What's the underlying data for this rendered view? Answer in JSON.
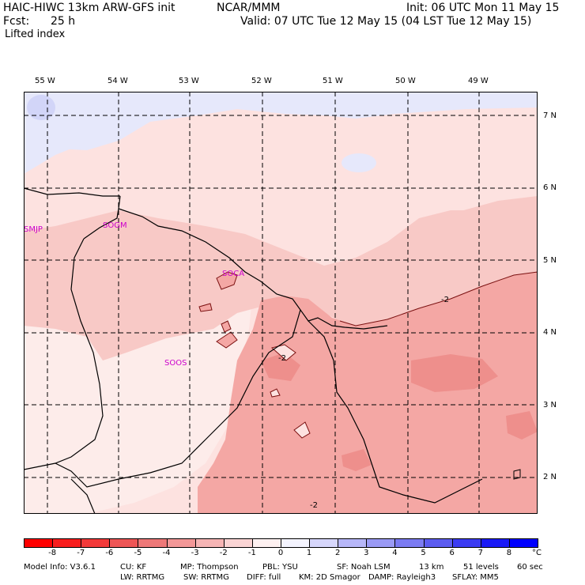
{
  "header": {
    "model_title": "HAIC-HIWC 13km ARW-GFS init",
    "org": "NCAR/MMM",
    "init": "Init: 06 UTC Mon 11 May 15",
    "fcst_label": "Fcst:",
    "fcst_value": "25 h",
    "valid": "Valid: 07 UTC Tue 12 May 15 (04 LST Tue 12 May 15)",
    "field": "Lifted index"
  },
  "map": {
    "lon_labels": [
      "55 W",
      "54 W",
      "53 W",
      "52 W",
      "51 W",
      "50 W",
      "49 W"
    ],
    "lat_labels": [
      "7 N",
      "6 N",
      "5 N",
      "4 N",
      "3 N",
      "2 N"
    ],
    "stations": [
      "SMJP",
      "SOGM",
      "SOCA",
      "SOOS"
    ],
    "contour_labels": [
      "-2",
      "-2",
      "-2"
    ],
    "colors": {
      "ocean_pale": "#fde2e0",
      "land_pale": "#fdecea",
      "band": "#f8c9c6",
      "mid": "#f4a7a4",
      "strong": "#ee8f8c",
      "blue_tint": "#e6e8fb",
      "blue_blob": "#d2d5f8",
      "station": "#cc00cc"
    }
  },
  "colorbar": {
    "labels": [
      "-8",
      "-7",
      "-6",
      "-5",
      "-4",
      "-3",
      "-2",
      "-1",
      "0",
      "1",
      "2",
      "3",
      "4",
      "5",
      "6",
      "7",
      "8"
    ],
    "unit": "°C",
    "colors": [
      "#ff0000",
      "#f81d1d",
      "#f33a3a",
      "#ee5656",
      "#ee7878",
      "#f29797",
      "#f6b5b5",
      "#fad4d4",
      "#fef1f1",
      "#f3f3fe",
      "#d6d6fb",
      "#b6b6f8",
      "#9a9af5",
      "#7b7bf2",
      "#5c5cf0",
      "#3b3bf2",
      "#1a1af6",
      "#0000ff"
    ]
  },
  "footer": {
    "line1": [
      "Model Info: V3.6.1",
      "CU: KF",
      "MP: Thompson",
      "PBL: YSU",
      "SF: Noah LSM",
      "13 km",
      "51 levels",
      "60 sec"
    ],
    "line2": [
      "LW: RRTMG",
      "SW: RRTMG",
      "DIFF: full",
      "KM: 2D Smagor",
      "DAMP: Rayleigh3",
      "SFLAY: MM5"
    ]
  }
}
